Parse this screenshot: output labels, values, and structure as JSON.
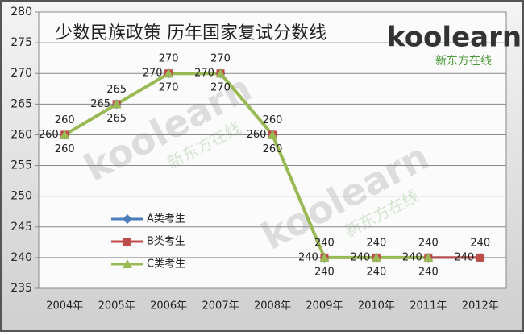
{
  "chart_data": {
    "type": "line",
    "title": "少数民族政策 历年国家复试分数线",
    "logo": "koolearn",
    "logo_sub": "新东方在线",
    "categories": [
      "2004年",
      "2005年",
      "2006年",
      "2007年",
      "2008年",
      "2009年",
      "2010年",
      "2011年",
      "2012年"
    ],
    "series": [
      {
        "name": "A类考生",
        "color": "#4a7ebb",
        "marker": "diamond",
        "values": [
          260,
          265,
          270,
          270,
          260,
          240,
          240,
          240,
          240
        ]
      },
      {
        "name": "B类考生",
        "color": "#be4b48",
        "marker": "square",
        "values": [
          260,
          265,
          270,
          270,
          260,
          240,
          240,
          240,
          240
        ]
      },
      {
        "name": "C类考生",
        "color": "#98b954",
        "marker": "triangle",
        "values": [
          260,
          265,
          270,
          270,
          260,
          240,
          240,
          240,
          null
        ]
      }
    ],
    "ylim": [
      235,
      280
    ],
    "yticks": [
      235,
      240,
      245,
      250,
      255,
      260,
      265,
      270,
      275,
      280
    ],
    "grid": true
  }
}
